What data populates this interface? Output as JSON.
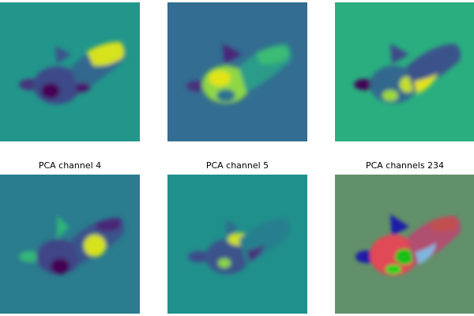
{
  "panels": [
    {
      "id": "p1",
      "title": "",
      "bg": "#22968b",
      "palette": "viridis-ch1"
    },
    {
      "id": "p2",
      "title": "",
      "bg": "#336d91",
      "palette": "viridis-ch2"
    },
    {
      "id": "p3",
      "title": "",
      "bg": "#2aae80",
      "palette": "viridis-ch3"
    },
    {
      "id": "p4",
      "title": "PCA channel 4",
      "bg": "#2a7c8e",
      "palette": "viridis-ch4"
    },
    {
      "id": "p5",
      "title": "PCA channel 5",
      "bg": "#20908c",
      "palette": "viridis-ch5"
    },
    {
      "id": "p6",
      "title": "PCA channels 234",
      "bg": "#62906a",
      "palette": "rgb-composite"
    }
  ],
  "colors": {
    "viridis_dark": "#440154",
    "viridis_blue": "#3b528b",
    "viridis_teal": "#21918c",
    "viridis_green": "#5ec962",
    "viridis_yellow": "#fde725"
  }
}
